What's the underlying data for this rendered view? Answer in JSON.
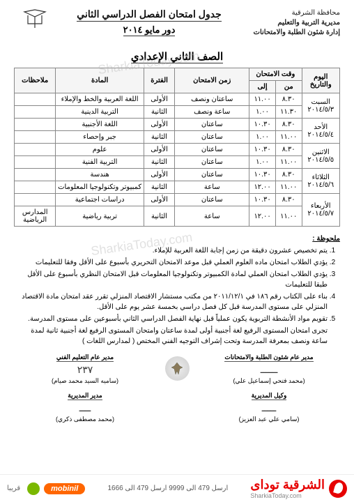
{
  "header": {
    "governorate": "محافظة الشرقية",
    "directorate": "مديرية التربية والتعليم",
    "department": "إدارة شئون الطلبة والامتحانات",
    "title_main": "جدول امتحان الفصل الدراسي الثاني",
    "title_sub": "دور مايو ٢٠١٤"
  },
  "grade_title": "الصف الثاني الإعدادي",
  "table": {
    "headers": {
      "day": "اليوم والتاريخ",
      "time": "وقت الامتحان",
      "from": "من",
      "to": "إلى",
      "duration": "زمن الامتحان",
      "period": "الفترة",
      "subject": "المادة",
      "notes": "ملاحظات"
    },
    "rows": [
      {
        "day": "السبت",
        "date": "٢٠١٤/٥/٣",
        "from": "٨.٣٠",
        "to": "١١.٠٠",
        "duration": "ساعتان ونصف",
        "period": "الأولى",
        "subject": "اللغة العربية والخط والإملاء",
        "notes": "",
        "rowspan": 2
      },
      {
        "from": "١١.٣٠",
        "to": "١.٠٠",
        "duration": "ساعة ونصف",
        "period": "الثانية",
        "subject": "التربية الدينية",
        "notes": ""
      },
      {
        "day": "الأحد",
        "date": "٢٠١٤/٥/٤",
        "from": "٨.٣٠",
        "to": "١٠.٣٠",
        "duration": "ساعتان",
        "period": "الأولى",
        "subject": "اللغة الأجنبية",
        "notes": "",
        "rowspan": 2
      },
      {
        "from": "١١.٠٠",
        "to": "١.٠٠",
        "duration": "ساعتان",
        "period": "الثانية",
        "subject": "جبر وإحصاء",
        "notes": ""
      },
      {
        "day": "الاثنين",
        "date": "٢٠١٤/٥/٥",
        "from": "٨.٣٠",
        "to": "١٠.٣٠",
        "duration": "ساعتان",
        "period": "الأولى",
        "subject": "علوم",
        "notes": "",
        "rowspan": 2
      },
      {
        "from": "١١.٠٠",
        "to": "١.٠٠",
        "duration": "ساعتان",
        "period": "الثانية",
        "subject": "التربية الفنية",
        "notes": ""
      },
      {
        "day": "الثلاثاء",
        "date": "٢٠١٤/٥/٦",
        "from": "٨.٣٠",
        "to": "١٠.٣٠",
        "duration": "ساعتان",
        "period": "الأولى",
        "subject": "هندسة",
        "notes": "",
        "rowspan": 2
      },
      {
        "from": "١١.٠٠",
        "to": "١٢.٠٠",
        "duration": "ساعة",
        "period": "الثانية",
        "subject": "كمبيوتر وتكنولوجيا المعلومات",
        "notes": ""
      },
      {
        "day": "الأربعاء",
        "date": "٢٠١٤/٥/٧",
        "from": "٨.٣٠",
        "to": "١٠.٣٠",
        "duration": "ساعتان",
        "period": "الأولى",
        "subject": "دراسات اجتماعية",
        "notes": "",
        "rowspan": 2
      },
      {
        "from": "١١.٠٠",
        "to": "١٢.٠٠",
        "duration": "ساعة",
        "period": "الثانية",
        "subject": "تربية رياضية",
        "notes": "المدارس الرياضية"
      }
    ]
  },
  "notes": {
    "title": "ملحوظة :",
    "items": [
      "يتم تخصيص عشرون دقيقة من زمن إجابة اللغة العربية للإملاء.",
      "يؤدي الطلاب امتحان ماده العلوم العملي قبل موعد الامتحان التحريري بأسبوع على الأقل وفقا للتعليمات",
      "يؤدي الطلاب امتحان العملي لمادة الكمبيوتر وتكنولوجيا المعلومات قبل الامتحان النظري بأسبوع على الأقل طبقا للتعليمات",
      "بناء على الكتاب رقم ١٨٦ في ٢٠١١/١٢/١ من مكتب مستشار الاقتصاد المنزلي تقرر عقد امتحان مادة الاقتصاد المنزلي على مستوى المدرسة قبل كل فصل دراسي بخمسة عشر يوم على الأقل.",
      "تقويم مواد الأنشطة التربوية يكون عملياً قبل نهاية الفصل الدراسي الثاني بأسبوعين على مستوى المدرسة."
    ],
    "extra": "تجرى امتحان المستوى الرفيع لغة أجنبية أولى لمدة ساعتان وامتحان المستوى الرفيع لغة أجنبية ثانية لمدة ساعة ونصف بمعرفة المدرسة وتحت إشراف التوجيه الفني المختص ( لمدارس اللغات )"
  },
  "signatures": {
    "s1": {
      "title": "مدير عام شئون الطلبة والامتحانات",
      "name": "(محمد فتحي إسماعيل علي)"
    },
    "s2": {
      "title": "مدير عام التعليم الفني",
      "name": "(ساميه السيد محمد صيام)",
      "mark": "٢٣٧"
    },
    "s3": {
      "title": "وكيل المديرية",
      "name": "(سامي علي عبد العزيز)"
    },
    "s4": {
      "title": "مدير المديرية",
      "name": "(محمد مصطفى ذكري)"
    }
  },
  "watermark": "SharkiaToday.com",
  "footer": {
    "brand": "الشرقية توداى",
    "url": "SharkiaToday.com",
    "promo": "ارسل 479 الى 9999  ارسل 479 الى 1666",
    "mobinil": "mobinil",
    "soon": "قريبا"
  }
}
